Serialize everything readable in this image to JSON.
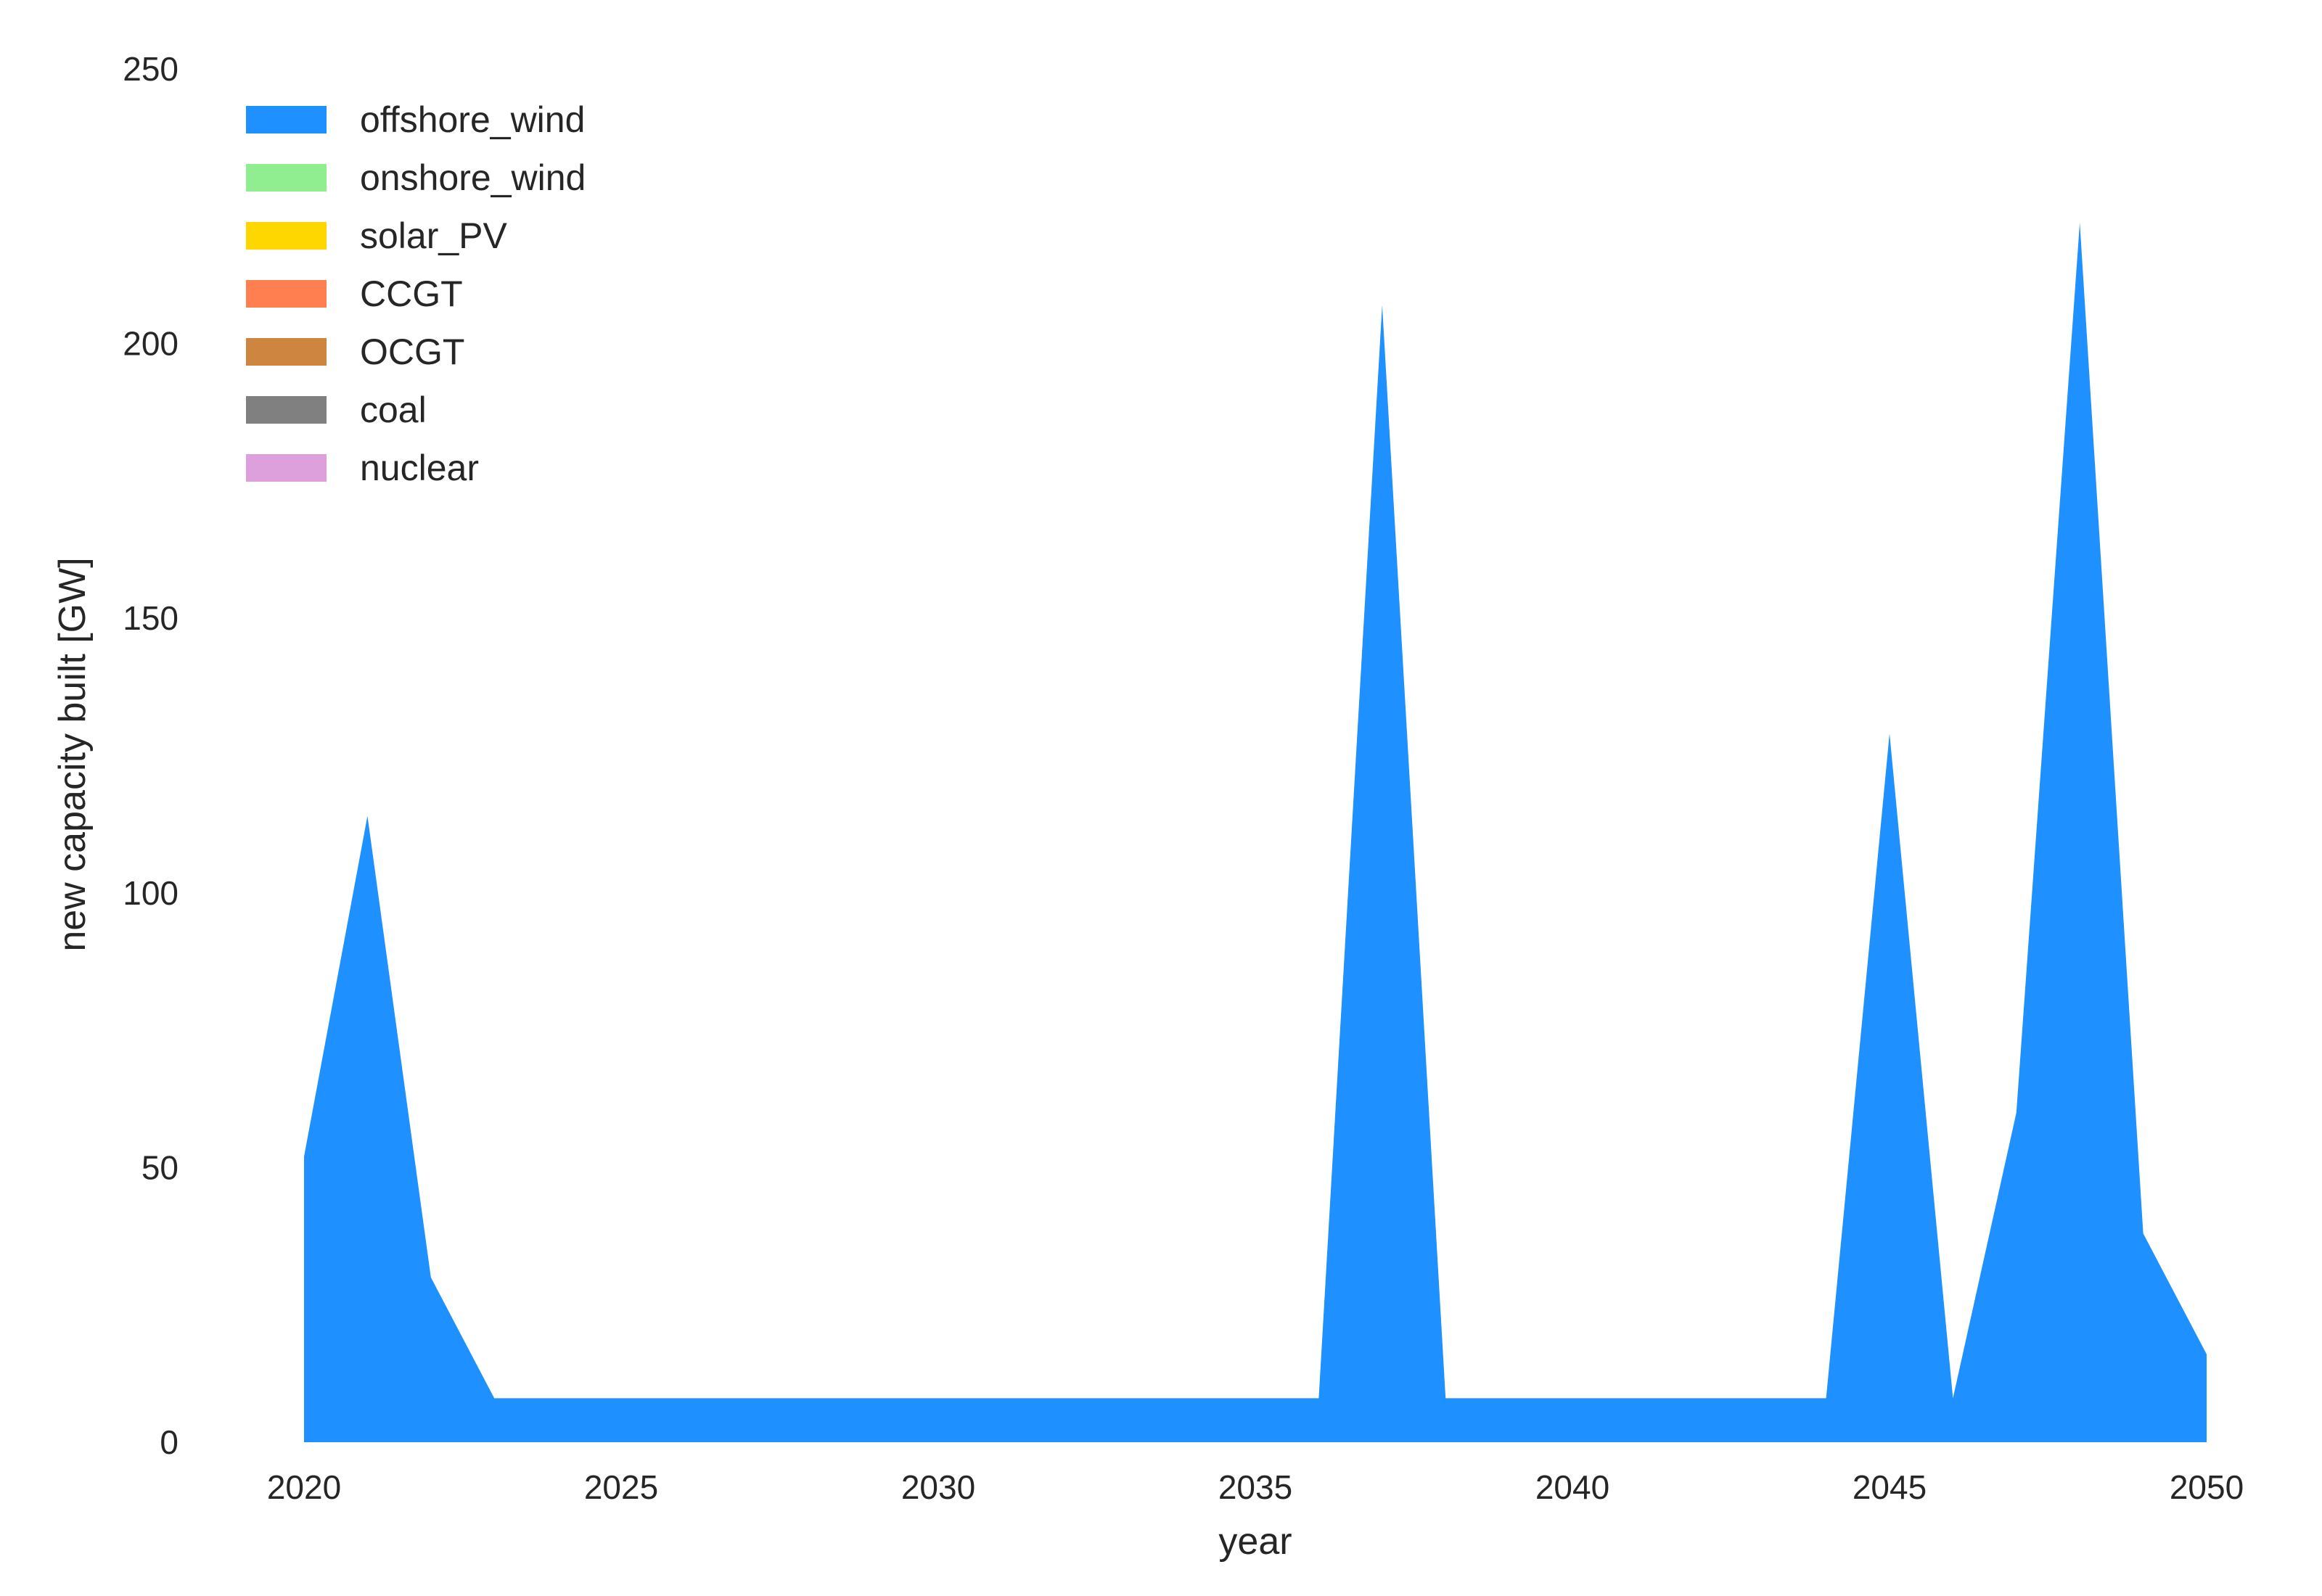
{
  "chart_data": {
    "type": "area",
    "stacked": true,
    "xlabel": "year",
    "ylabel": "new capacity built [GW]",
    "xlim": [
      2020,
      2050
    ],
    "ylim": [
      0,
      250
    ],
    "xticks": [
      2020,
      2025,
      2030,
      2035,
      2040,
      2045,
      2050
    ],
    "yticks": [
      0,
      50,
      100,
      150,
      200,
      250
    ],
    "grid": false,
    "legend_position": "top-left",
    "x": [
      2020,
      2021,
      2022,
      2023,
      2024,
      2025,
      2026,
      2027,
      2028,
      2029,
      2030,
      2031,
      2032,
      2033,
      2034,
      2035,
      2036,
      2037,
      2038,
      2039,
      2040,
      2041,
      2042,
      2043,
      2044,
      2045,
      2046,
      2047,
      2048,
      2049,
      2050
    ],
    "series": [
      {
        "name": "offshore_wind",
        "color": "#1E90FF",
        "values": [
          52,
          114,
          30,
          8,
          8,
          8,
          8,
          8,
          8,
          8,
          8,
          8,
          8,
          8,
          8,
          8,
          8,
          207,
          8,
          8,
          8,
          8,
          8,
          8,
          8,
          129,
          8,
          60,
          222,
          38,
          16
        ]
      },
      {
        "name": "onshore_wind",
        "color": "#90EE90",
        "values": [
          0,
          0,
          0,
          0,
          0,
          0,
          0,
          0,
          0,
          0,
          0,
          0,
          0,
          0,
          0,
          0,
          0,
          0,
          0,
          0,
          0,
          0,
          0,
          0,
          0,
          0,
          0,
          0,
          0,
          0,
          0
        ]
      },
      {
        "name": "solar_PV",
        "color": "#FFD700",
        "values": [
          0,
          0,
          0,
          0,
          0,
          0,
          0,
          0,
          0,
          0,
          0,
          0,
          0,
          0,
          0,
          0,
          0,
          0,
          0,
          0,
          0,
          0,
          0,
          0,
          0,
          0,
          0,
          0,
          0,
          0,
          0
        ]
      },
      {
        "name": "CCGT",
        "color": "#FF7F50",
        "values": [
          0,
          0,
          0,
          0,
          0,
          0,
          0,
          0,
          0,
          0,
          0,
          0,
          0,
          0,
          0,
          0,
          0,
          0,
          0,
          0,
          0,
          0,
          0,
          0,
          0,
          0,
          0,
          0,
          0,
          0,
          0
        ]
      },
      {
        "name": "OCGT",
        "color": "#CD853F",
        "values": [
          0,
          0,
          0,
          0,
          0,
          0,
          0,
          0,
          0,
          0,
          0,
          0,
          0,
          0,
          0,
          0,
          0,
          0,
          0,
          0,
          0,
          0,
          0,
          0,
          0,
          0,
          0,
          0,
          0,
          0,
          0
        ]
      },
      {
        "name": "coal",
        "color": "#808080",
        "values": [
          0,
          0,
          0,
          0,
          0,
          0,
          0,
          0,
          0,
          0,
          0,
          0,
          0,
          0,
          0,
          0,
          0,
          0,
          0,
          0,
          0,
          0,
          0,
          0,
          0,
          0,
          0,
          0,
          0,
          0,
          0
        ]
      },
      {
        "name": "nuclear",
        "color": "#DDA0DD",
        "values": [
          0,
          0,
          0,
          0,
          0,
          0,
          0,
          0,
          0,
          0,
          0,
          0,
          0,
          0,
          0,
          0,
          0,
          0,
          0,
          0,
          0,
          0,
          0,
          0,
          0,
          0,
          0,
          0,
          0,
          0,
          0
        ]
      }
    ]
  }
}
